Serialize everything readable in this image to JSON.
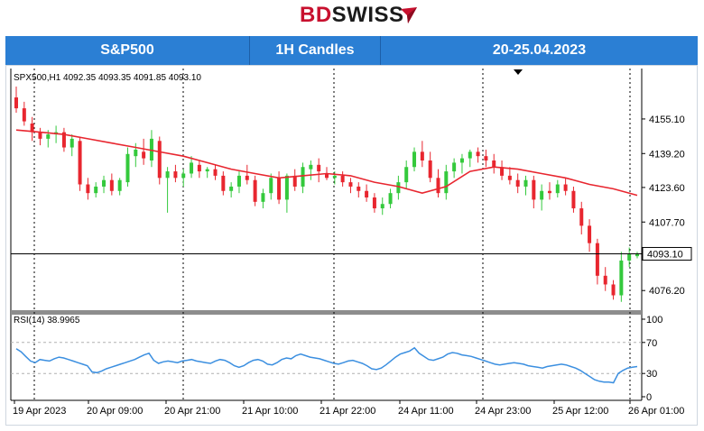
{
  "brand": {
    "bd": "BD",
    "swiss": "SWISS"
  },
  "header": {
    "instrument": "S&P500",
    "timeframe": "1H Candles",
    "period": "20-25.04.2023"
  },
  "colors": {
    "header_bg": "#2b7fd4",
    "up": "#34c93c",
    "down": "#e8262f",
    "ma": "#e8262f",
    "rsi": "#3b8fe0",
    "brand_red": "#c8102e"
  },
  "chart_data": [
    {
      "type": "candlestick",
      "info": "SPX500,H1  4092.35 4093.35 4091.85 4093.10",
      "last_price_label": "4093.10",
      "ylim": [
        4068,
        4170
      ],
      "yticks": [
        "4155.10",
        "4139.20",
        "4123.60",
        "4107.70",
        "4076.20"
      ],
      "ytick_values": [
        4155.1,
        4139.2,
        4123.6,
        4107.7,
        4076.2
      ],
      "last_price": 4093.1,
      "moving_average": [
        4150,
        4149,
        4148,
        4146,
        4144,
        4142,
        4140,
        4138,
        4135,
        4132,
        4130,
        4128,
        4129,
        4130,
        4129,
        4126,
        4124,
        4121,
        4124,
        4131,
        4133,
        4132,
        4130,
        4128,
        4125,
        4123,
        4120
      ],
      "xtick_labels": [
        "19 Apr 2023",
        "20 Apr 09:00",
        "20 Apr 21:00",
        "21 Apr 10:00",
        "21 Apr 22:00",
        "24 Apr 11:00",
        "24 Apr 23:00",
        "25 Apr 12:00",
        "26 Apr 01:00"
      ],
      "candles": [
        [
          4165,
          4170,
          4158,
          4160
        ],
        [
          4160,
          4163,
          4152,
          4154
        ],
        [
          4153,
          4156,
          4145,
          4149
        ],
        [
          4149,
          4151,
          4143,
          4146
        ],
        [
          4146,
          4150,
          4142,
          4148
        ],
        [
          4148,
          4152,
          4144,
          4149
        ],
        [
          4149,
          4151,
          4140,
          4142
        ],
        [
          4142,
          4148,
          4138,
          4146
        ],
        [
          4145,
          4147,
          4122,
          4125
        ],
        [
          4125,
          4128,
          4118,
          4121
        ],
        [
          4121,
          4126,
          4119,
          4124
        ],
        [
          4124,
          4129,
          4121,
          4127
        ],
        [
          4127,
          4130,
          4120,
          4122
        ],
        [
          4122,
          4128,
          4120,
          4127
        ],
        [
          4126,
          4142,
          4124,
          4139
        ],
        [
          4138,
          4144,
          4133,
          4141
        ],
        [
          4140,
          4146,
          4134,
          4137
        ],
        [
          4136,
          4150,
          4133,
          4146
        ],
        [
          4145,
          4147,
          4125,
          4128
        ],
        [
          4128,
          4133,
          4112,
          4131
        ],
        [
          4131,
          4134,
          4126,
          4128
        ],
        [
          4128,
          4132,
          4124,
          4130
        ],
        [
          4130,
          4138,
          4128,
          4135
        ],
        [
          4134,
          4136,
          4128,
          4131
        ],
        [
          4131,
          4133,
          4128,
          4132
        ],
        [
          4132,
          4134,
          4127,
          4129
        ],
        [
          4129,
          4131,
          4120,
          4122
        ],
        [
          4122,
          4126,
          4119,
          4124
        ],
        [
          4124,
          4131,
          4121,
          4129
        ],
        [
          4129,
          4134,
          4125,
          4127
        ],
        [
          4127,
          4129,
          4115,
          4117
        ],
        [
          4117,
          4123,
          4114,
          4121
        ],
        [
          4121,
          4130,
          4118,
          4128
        ],
        [
          4128,
          4131,
          4116,
          4118
        ],
        [
          4118,
          4130,
          4112,
          4129
        ],
        [
          4129,
          4132,
          4122,
          4124
        ],
        [
          4124,
          4135,
          4121,
          4133
        ],
        [
          4132,
          4136,
          4127,
          4134
        ],
        [
          4134,
          4137,
          4126,
          4131
        ],
        [
          4130,
          4133,
          4127,
          4128
        ],
        [
          4128,
          4131,
          4125,
          4129
        ],
        [
          4129,
          4131,
          4124,
          4126
        ],
        [
          4126,
          4128,
          4121,
          4124
        ],
        [
          4124,
          4126,
          4119,
          4122
        ],
        [
          4122,
          4125,
          4117,
          4119
        ],
        [
          4119,
          4121,
          4112,
          4114
        ],
        [
          4114,
          4119,
          4111,
          4116
        ],
        [
          4116,
          4123,
          4114,
          4121
        ],
        [
          4121,
          4129,
          4118,
          4126
        ],
        [
          4126,
          4136,
          4123,
          4133
        ],
        [
          4133,
          4142,
          4131,
          4140
        ],
        [
          4140,
          4145,
          4133,
          4136
        ],
        [
          4136,
          4140,
          4126,
          4128
        ],
        [
          4128,
          4132,
          4119,
          4121
        ],
        [
          4121,
          4134,
          4118,
          4131
        ],
        [
          4131,
          4137,
          4128,
          4135
        ],
        [
          4135,
          4139,
          4130,
          4137
        ],
        [
          4137,
          4141,
          4133,
          4140
        ],
        [
          4140,
          4142,
          4135,
          4138
        ],
        [
          4138,
          4141,
          4133,
          4136
        ],
        [
          4136,
          4139,
          4130,
          4133
        ],
        [
          4133,
          4136,
          4127,
          4129
        ],
        [
          4129,
          4133,
          4125,
          4127
        ],
        [
          4127,
          4130,
          4121,
          4124
        ],
        [
          4124,
          4129,
          4120,
          4127
        ],
        [
          4127,
          4129,
          4114,
          4118
        ],
        [
          4118,
          4125,
          4113,
          4122
        ],
        [
          4122,
          4126,
          4118,
          4121
        ],
        [
          4121,
          4127,
          4119,
          4125
        ],
        [
          4125,
          4128,
          4120,
          4122
        ],
        [
          4122,
          4124,
          4112,
          4114
        ],
        [
          4114,
          4117,
          4102,
          4106
        ],
        [
          4106,
          4109,
          4094,
          4098
        ],
        [
          4098,
          4100,
          4079,
          4083
        ],
        [
          4083,
          4087,
          4076,
          4079
        ],
        [
          4079,
          4081,
          4072,
          4074
        ],
        [
          4074,
          4094,
          4071,
          4090
        ],
        [
          4090,
          4096,
          4087,
          4093
        ],
        [
          4092,
          4094,
          4091,
          4093
        ]
      ]
    },
    {
      "type": "line",
      "name": "RSI(14) 38.9965",
      "ylim": [
        0,
        100
      ],
      "yticks": [
        "100",
        "70",
        "30",
        "0"
      ],
      "ytick_values": [
        100,
        70,
        30,
        0
      ],
      "levels": [
        70,
        30
      ],
      "values": [
        62,
        58,
        52,
        46,
        44,
        48,
        47,
        46,
        49,
        51,
        50,
        48,
        46,
        44,
        42,
        40,
        32,
        31,
        33,
        36,
        38,
        40,
        42,
        44,
        46,
        48,
        51,
        54,
        56,
        47,
        43,
        45,
        46,
        45,
        44,
        46,
        47,
        48,
        46,
        45,
        44,
        43,
        46,
        48,
        47,
        44,
        40,
        38,
        40,
        44,
        47,
        48,
        46,
        42,
        41,
        44,
        48,
        50,
        49,
        53,
        55,
        53,
        51,
        50,
        49,
        47,
        45,
        43,
        42,
        44,
        46,
        47,
        45,
        43,
        40,
        36,
        35,
        37,
        41,
        46,
        51,
        55,
        57,
        59,
        63,
        56,
        52,
        48,
        47,
        49,
        51,
        55,
        57,
        56,
        54,
        53,
        52,
        50,
        48,
        46,
        44,
        42,
        41,
        42,
        43,
        44,
        43,
        42,
        40,
        39,
        38,
        37,
        39,
        40,
        41,
        42,
        41,
        39,
        37,
        34,
        30,
        26,
        22,
        20,
        19,
        19,
        18,
        30,
        34,
        37,
        38,
        39
      ]
    }
  ]
}
